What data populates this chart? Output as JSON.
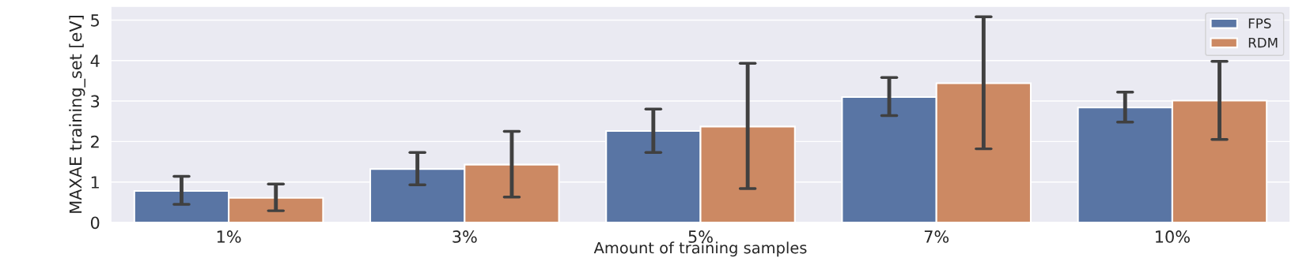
{
  "chart_data": {
    "type": "bar",
    "xlabel": "Amount of training samples",
    "ylabel": "MAXAE training_set [eV]",
    "categories": [
      "1%",
      "3%",
      "5%",
      "7%",
      "10%"
    ],
    "series": [
      {
        "name": "FPS",
        "color": "#5975a4",
        "values": [
          0.78,
          1.32,
          2.26,
          3.1,
          2.84
        ],
        "errors": [
          [
            0.45,
            1.14
          ],
          [
            0.93,
            1.73
          ],
          [
            1.73,
            2.8
          ],
          [
            2.64,
            3.58
          ],
          [
            2.48,
            3.22
          ]
        ]
      },
      {
        "name": "RDM",
        "color": "#cc8963",
        "values": [
          0.61,
          1.43,
          2.37,
          3.44,
          3.01
        ],
        "errors": [
          [
            0.29,
            0.95
          ],
          [
            0.63,
            2.25
          ],
          [
            0.84,
            3.93
          ],
          [
            1.82,
            5.08
          ],
          [
            2.05,
            3.98
          ]
        ]
      }
    ],
    "ylim": [
      0,
      5.34
    ],
    "yticks": [
      0,
      1,
      2,
      3,
      4,
      5
    ],
    "grid": "y",
    "legend": "top right"
  }
}
